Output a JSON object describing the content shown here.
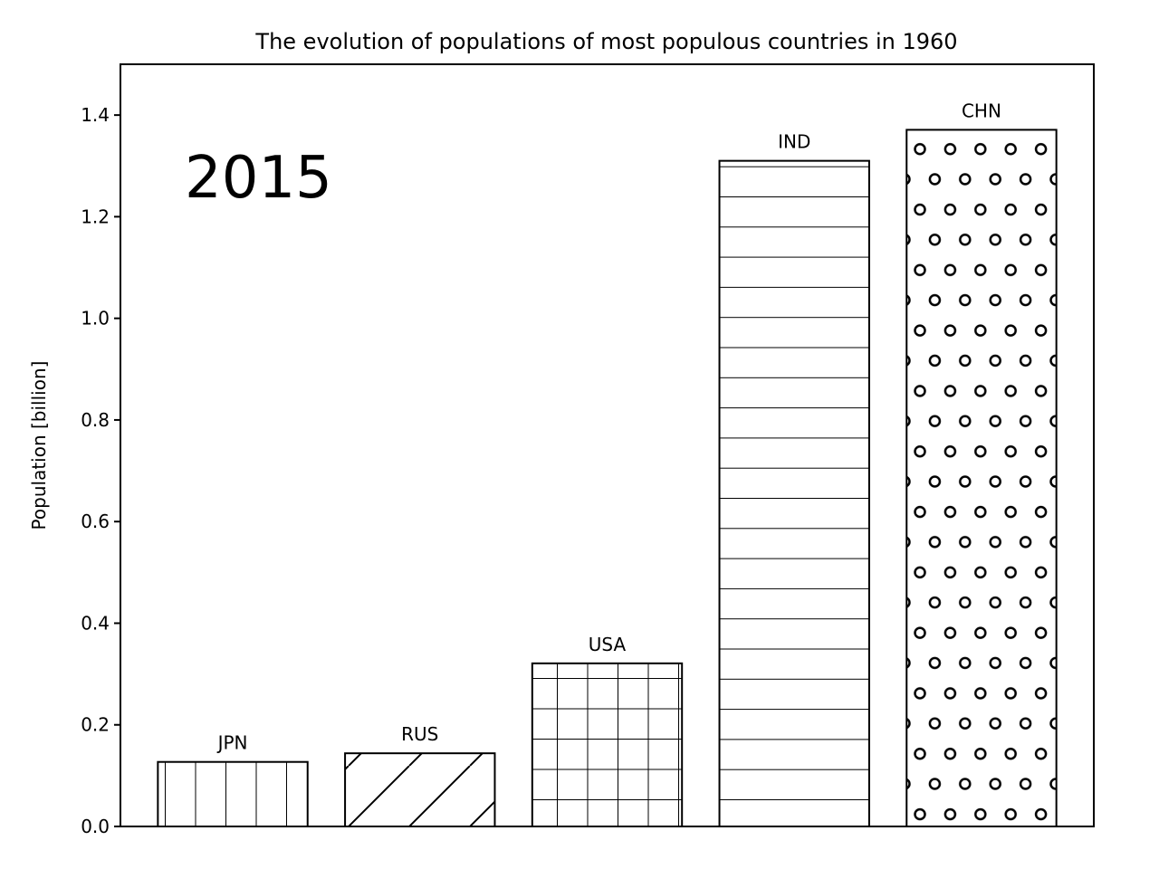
{
  "chart_data": {
    "type": "bar",
    "title": "The evolution of populations of most populous countries in 1960",
    "xlabel": "",
    "ylabel": "Population [billion]",
    "ylim": [
      0,
      1.5
    ],
    "yticks": [
      "0.0",
      "0.2",
      "0.4",
      "0.6",
      "0.8",
      "1.0",
      "1.2",
      "1.4"
    ],
    "grid": false,
    "year_label": "2015",
    "categories": [
      "JPN",
      "RUS",
      "USA",
      "IND",
      "CHN"
    ],
    "values": [
      0.127,
      0.144,
      0.321,
      1.31,
      1.371
    ],
    "hatches": [
      "vertical",
      "diagonal",
      "grid",
      "horizontal",
      "circles"
    ],
    "bar_fill": "#ffffff",
    "bar_edge": "#000000"
  }
}
